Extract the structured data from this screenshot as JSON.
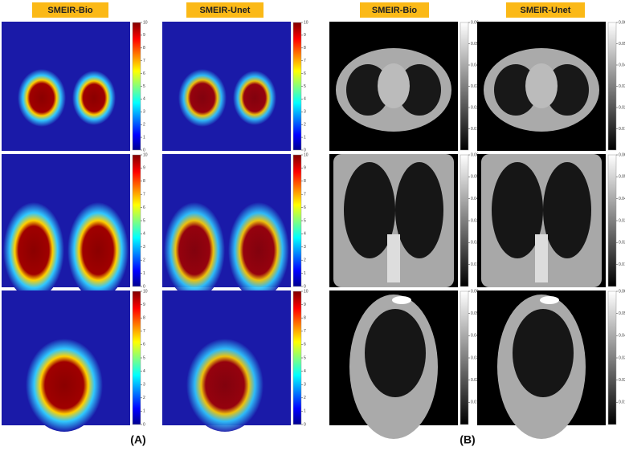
{
  "panel_a": {
    "label": "(A)",
    "columns": [
      {
        "title": "SMEIR-Bio"
      },
      {
        "title": "SMEIR-Unet"
      }
    ],
    "colorbar_ticks": [
      0,
      1,
      2,
      3,
      4,
      5,
      6,
      7,
      8,
      9,
      10
    ]
  },
  "panel_b": {
    "label": "(B)",
    "columns": [
      {
        "title": "SMEIR-Bio"
      },
      {
        "title": "SMEIR-Unet"
      }
    ],
    "colorbar_ticks": [
      0.01,
      0.02,
      0.03,
      0.04,
      0.05,
      0.06
    ]
  }
}
